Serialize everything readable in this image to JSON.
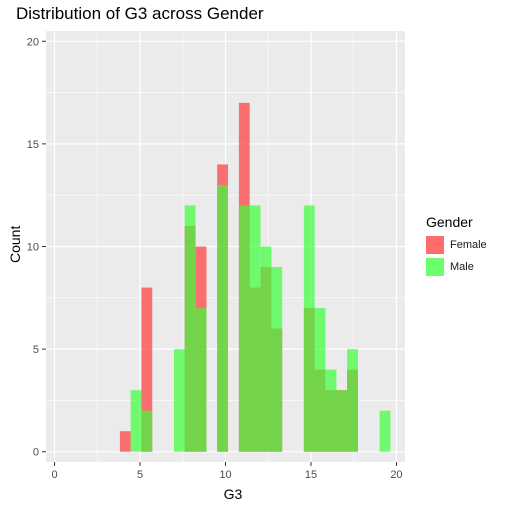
{
  "chart_data": {
    "type": "histogram",
    "title": "Distribution of G3 across Gender",
    "xlabel": "G3",
    "ylabel": "Count",
    "xlim": [
      -0.5,
      20.5
    ],
    "ylim": [
      -0.5,
      20.5
    ],
    "x_ticks": [
      0,
      5,
      10,
      15,
      20
    ],
    "y_ticks": [
      0,
      5,
      10,
      15,
      20
    ],
    "bin_width": 0.633,
    "legend_title": "Gender",
    "legend_position": "right",
    "grid": true,
    "background": "#ebebeb",
    "gridline_color": "#ffffff",
    "bar_opacity": 0.7,
    "series": [
      {
        "name": "Female",
        "color": "#ff3b3b",
        "bins": [
          {
            "x": 4.14,
            "count": 1
          },
          {
            "x": 5.4,
            "count": 8
          },
          {
            "x": 7.93,
            "count": 11
          },
          {
            "x": 8.57,
            "count": 10
          },
          {
            "x": 9.83,
            "count": 14
          },
          {
            "x": 11.1,
            "count": 17
          },
          {
            "x": 11.73,
            "count": 8
          },
          {
            "x": 12.37,
            "count": 9
          },
          {
            "x": 13.0,
            "count": 6
          },
          {
            "x": 14.9,
            "count": 7
          },
          {
            "x": 15.53,
            "count": 4
          },
          {
            "x": 16.17,
            "count": 3
          },
          {
            "x": 16.8,
            "count": 3
          },
          {
            "x": 17.43,
            "count": 4
          }
        ]
      },
      {
        "name": "Male",
        "color": "#3bff3b",
        "bins": [
          {
            "x": 4.77,
            "count": 3
          },
          {
            "x": 5.4,
            "count": 2
          },
          {
            "x": 7.3,
            "count": 5
          },
          {
            "x": 7.93,
            "count": 12
          },
          {
            "x": 8.57,
            "count": 7
          },
          {
            "x": 9.83,
            "count": 13
          },
          {
            "x": 11.1,
            "count": 12
          },
          {
            "x": 11.73,
            "count": 12
          },
          {
            "x": 12.37,
            "count": 10
          },
          {
            "x": 13.0,
            "count": 9
          },
          {
            "x": 14.9,
            "count": 12
          },
          {
            "x": 15.53,
            "count": 7
          },
          {
            "x": 16.17,
            "count": 4
          },
          {
            "x": 16.8,
            "count": 3
          },
          {
            "x": 17.43,
            "count": 5
          },
          {
            "x": 19.33,
            "count": 2
          }
        ]
      }
    ]
  }
}
